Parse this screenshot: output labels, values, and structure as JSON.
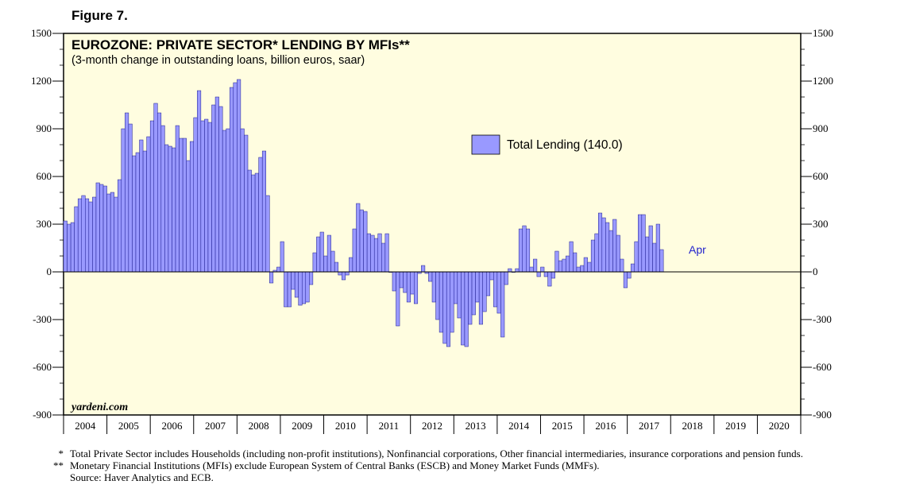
{
  "figure_label": "Figure 7.",
  "chart_data": {
    "type": "bar",
    "title": "EUROZONE: PRIVATE SECTOR* LENDING BY MFIs**",
    "subtitle": "(3-month change in outstanding loans, billion euros, saar)",
    "ylim": [
      -900,
      1500
    ],
    "yticks": [
      -900,
      -600,
      -300,
      0,
      300,
      600,
      900,
      1200,
      1500
    ],
    "ytick_labels": [
      "-900",
      "-600",
      "-300",
      "0",
      "300",
      "600",
      "900",
      "1200",
      "1500"
    ],
    "x_range": [
      2004,
      2021
    ],
    "year_labels": [
      "2004",
      "2005",
      "2006",
      "2007",
      "2008",
      "2009",
      "2010",
      "2011",
      "2012",
      "2013",
      "2014",
      "2015",
      "2016",
      "2017",
      "2018",
      "2019",
      "2020"
    ],
    "start": {
      "year": 2004,
      "month": 1
    },
    "legend": {
      "label": "Total Lending (140.0)",
      "position": "center-right"
    },
    "annotation": "Apr",
    "watermark": "yardeni.com",
    "bar_color": "#9999ff",
    "series": [
      {
        "name": "Total Lending",
        "values": [
          320,
          300,
          310,
          410,
          460,
          480,
          460,
          440,
          470,
          560,
          550,
          540,
          490,
          500,
          470,
          580,
          900,
          1000,
          930,
          730,
          750,
          830,
          760,
          850,
          950,
          1060,
          1000,
          920,
          800,
          790,
          780,
          920,
          840,
          840,
          700,
          820,
          970,
          1140,
          950,
          960,
          940,
          1050,
          1100,
          1040,
          890,
          900,
          1160,
          1190,
          1210,
          900,
          860,
          640,
          610,
          620,
          720,
          760,
          480,
          -70,
          10,
          30,
          190,
          -220,
          -220,
          -110,
          -160,
          -210,
          -200,
          -190,
          -80,
          120,
          220,
          250,
          100,
          230,
          130,
          60,
          -20,
          -50,
          -20,
          90,
          270,
          430,
          390,
          380,
          240,
          230,
          210,
          240,
          180,
          240,
          0,
          -120,
          -340,
          -100,
          -130,
          -190,
          -140,
          -200,
          -10,
          40,
          -10,
          -60,
          -190,
          -300,
          -380,
          -450,
          -470,
          -380,
          -200,
          -290,
          -460,
          -470,
          -330,
          -270,
          -190,
          -330,
          -250,
          -150,
          -50,
          -220,
          -260,
          -410,
          -80,
          20,
          0,
          20,
          270,
          290,
          270,
          30,
          80,
          -30,
          30,
          -30,
          -90,
          -40,
          130,
          70,
          80,
          100,
          190,
          120,
          30,
          40,
          90,
          60,
          200,
          240,
          370,
          340,
          310,
          260,
          330,
          230,
          80,
          -100,
          -40,
          50,
          190,
          360,
          360,
          220,
          290,
          180,
          300,
          140
        ]
      }
    ]
  },
  "footnotes": [
    {
      "mark": "*",
      "text": "Total Private Sector includes Households (including non-profit institutions), Nonfinancial corporations, Other financial intermediaries, insurance corporations and pension funds."
    },
    {
      "mark": "**",
      "text": "Monetary Financial Institutions (MFIs) exclude European System of Central Banks (ESCB) and Money Market Funds (MMFs)."
    },
    {
      "mark": "",
      "text": "Source: Haver Analytics and ECB."
    }
  ]
}
